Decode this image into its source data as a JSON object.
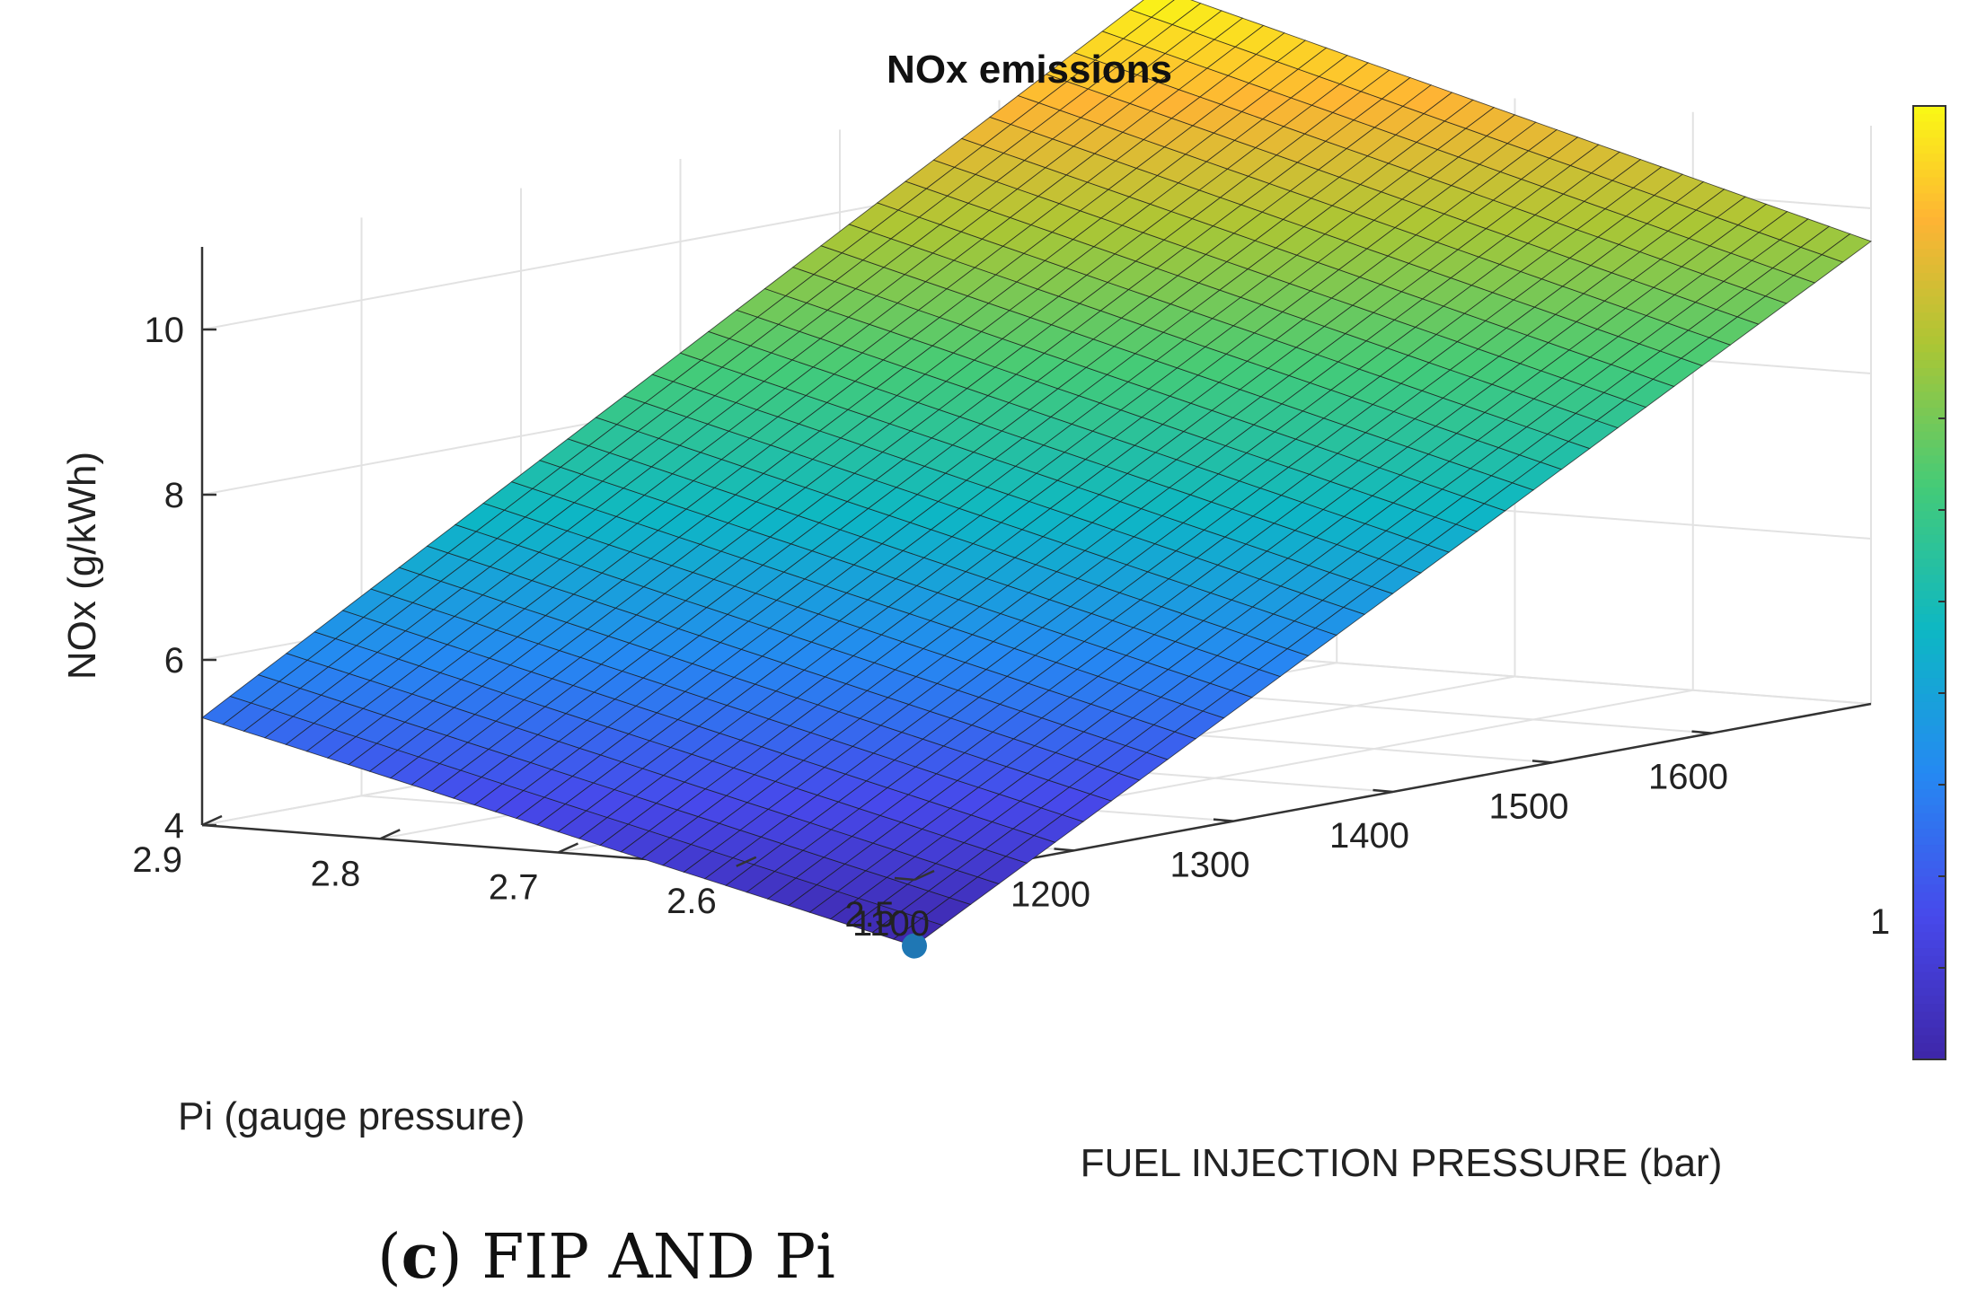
{
  "chart_data": {
    "type": "surface",
    "title": "NOx emissions",
    "xlabel": "FUEL INJECTION PRESSURE (bar)",
    "ylabel": "Pi (gauge pressure)",
    "zlabel": "NOx (g/kWh)",
    "x_ticks": [
      "1100",
      "1200",
      "1300",
      "1400",
      "1500",
      "1600"
    ],
    "y_ticks": [
      "2.5",
      "2.6",
      "2.7",
      "2.8",
      "2.9"
    ],
    "z_ticks": [
      "4",
      "6",
      "8",
      "10"
    ],
    "colorbar_partial_label": "1",
    "xlim": [
      1100,
      1700
    ],
    "ylim": [
      2.5,
      2.9
    ],
    "zlim": [
      4,
      11
    ],
    "surface_corners": [
      {
        "fip": 1100,
        "pi": 2.5,
        "nox": 3.2
      },
      {
        "fip": 1700,
        "pi": 2.5,
        "nox": 9.6
      },
      {
        "fip": 1100,
        "pi": 2.9,
        "nox": 5.3
      },
      {
        "fip": 1700,
        "pi": 2.9,
        "nox": 12.0
      }
    ],
    "marked_point": {
      "fip": 1100,
      "pi": 2.5,
      "nox": 3.2,
      "color": "#1f77b4"
    },
    "colormap": "parula",
    "grid": true
  },
  "caption": {
    "letter": "c",
    "text": "FIP AND Pi"
  }
}
